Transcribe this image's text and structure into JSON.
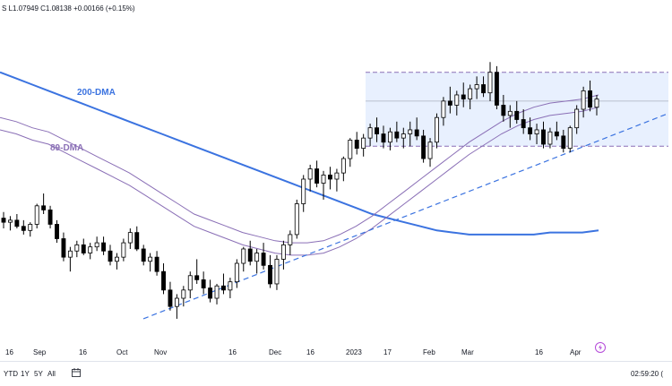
{
  "header": {
    "ohlc_text": "S  L1.07949  C1.08138  +0.00166 (+0.15%)"
  },
  "range_buttons": [
    "YTD",
    "1Y",
    "5Y",
    "All"
  ],
  "clock": "02:59:20 (",
  "colors": {
    "up": "#ffffff",
    "down": "#000000",
    "ma200": "#3b73e0",
    "ma89": "#8a6fb6",
    "trendline": "#3b73e0",
    "range_fill": "#e8f0fe",
    "range_border": "#8a6fb6"
  },
  "chart_data": {
    "type": "candlestick",
    "x_labels": [
      "16",
      "Sep",
      "16",
      "Oct",
      "Nov",
      "16",
      "Dec",
      "16",
      "2023",
      "17",
      "Feb",
      "Mar",
      "16",
      "Apr"
    ],
    "annotations": [
      "200-DMA",
      "89-DMA"
    ],
    "y_range": [
      0.955,
      1.105
    ],
    "series_ma200": [
      1.082,
      1.079,
      1.076,
      1.073,
      1.07,
      1.067,
      1.064,
      1.061,
      1.058,
      1.055,
      1.052,
      1.049,
      1.046,
      1.043,
      1.04,
      1.037,
      1.034,
      1.031,
      1.028,
      1.025,
      1.022,
      1.019,
      1.016,
      1.013,
      1.011,
      1.009,
      1.007,
      1.005,
      1.004,
      1.003,
      1.003,
      1.003,
      1.003,
      1.003,
      1.004,
      1.004,
      1.004,
      1.005
    ],
    "series_ma89": [
      1.06,
      1.058,
      1.055,
      1.053,
      1.049,
      1.045,
      1.041,
      1.037,
      1.033,
      1.028,
      1.023,
      1.018,
      1.013,
      1.01,
      1.007,
      1.004,
      1.002,
      1.0,
      0.999,
      0.999,
      1.0,
      1.003,
      1.007,
      1.012,
      1.018,
      1.024,
      1.03,
      1.036,
      1.042,
      1.048,
      1.053,
      1.058,
      1.062,
      1.065,
      1.067,
      1.068,
      1.069,
      1.071
    ],
    "candles": [
      [
        1.011,
        1.014,
        1.006,
        1.009
      ],
      [
        1.009,
        1.012,
        1.005,
        1.01
      ],
      [
        1.01,
        1.013,
        1.006,
        1.007
      ],
      [
        1.007,
        1.01,
        1.003,
        1.005
      ],
      [
        1.005,
        1.009,
        1.002,
        1.008
      ],
      [
        1.008,
        1.018,
        1.006,
        1.017
      ],
      [
        1.017,
        1.023,
        1.013,
        1.015
      ],
      [
        1.015,
        1.017,
        1.006,
        1.008
      ],
      [
        1.008,
        1.01,
        0.999,
        1.001
      ],
      [
        1.001,
        1.004,
        0.99,
        0.992
      ],
      [
        0.992,
        0.997,
        0.985,
        0.995
      ],
      [
        0.995,
        1.0,
        0.992,
        0.998
      ],
      [
        0.998,
        1.001,
        0.993,
        0.994
      ],
      [
        0.994,
        0.999,
        0.991,
        0.997
      ],
      [
        0.997,
        1.002,
        0.995,
        0.999
      ],
      [
        0.999,
        1.002,
        0.993,
        0.995
      ],
      [
        0.995,
        0.998,
        0.988,
        0.99
      ],
      [
        0.99,
        0.994,
        0.986,
        0.992
      ],
      [
        0.992,
        1.001,
        0.99,
        0.999
      ],
      [
        0.999,
        1.006,
        0.996,
        1.004
      ],
      [
        1.004,
        1.007,
        0.995,
        0.996
      ],
      [
        0.996,
        0.998,
        0.988,
        0.99
      ],
      [
        0.99,
        0.994,
        0.985,
        0.992
      ],
      [
        0.992,
        0.995,
        0.983,
        0.985
      ],
      [
        0.985,
        0.989,
        0.974,
        0.976
      ],
      [
        0.976,
        0.98,
        0.966,
        0.968
      ],
      [
        0.968,
        0.974,
        0.962,
        0.972
      ],
      [
        0.972,
        0.978,
        0.968,
        0.976
      ],
      [
        0.976,
        0.985,
        0.972,
        0.983
      ],
      [
        0.983,
        0.991,
        0.979,
        0.981
      ],
      [
        0.981,
        0.985,
        0.974,
        0.977
      ],
      [
        0.977,
        0.981,
        0.97,
        0.972
      ],
      [
        0.972,
        0.979,
        0.969,
        0.978
      ],
      [
        0.978,
        0.984,
        0.974,
        0.976
      ],
      [
        0.976,
        0.982,
        0.972,
        0.98
      ],
      [
        0.98,
        0.991,
        0.977,
        0.989
      ],
      [
        0.989,
        0.997,
        0.985,
        0.996
      ],
      [
        0.996,
        1.0,
        0.988,
        0.99
      ],
      [
        0.99,
        0.996,
        0.984,
        0.994
      ],
      [
        0.994,
        0.999,
        0.986,
        0.988
      ],
      [
        0.988,
        0.993,
        0.977,
        0.979
      ],
      [
        0.979,
        0.993,
        0.976,
        0.991
      ],
      [
        0.991,
        1.0,
        0.986,
        0.998
      ],
      [
        0.998,
        1.005,
        0.993,
        1.003
      ],
      [
        1.003,
        1.02,
        1.001,
        1.018
      ],
      [
        1.018,
        1.032,
        1.014,
        1.03
      ],
      [
        1.03,
        1.037,
        1.024,
        1.035
      ],
      [
        1.035,
        1.039,
        1.026,
        1.028
      ],
      [
        1.028,
        1.034,
        1.02,
        1.032
      ],
      [
        1.032,
        1.036,
        1.025,
        1.03
      ],
      [
        1.03,
        1.035,
        1.024,
        1.033
      ],
      [
        1.033,
        1.041,
        1.029,
        1.04
      ],
      [
        1.04,
        1.05,
        1.036,
        1.049
      ],
      [
        1.049,
        1.053,
        1.042,
        1.045
      ],
      [
        1.045,
        1.052,
        1.041,
        1.05
      ],
      [
        1.05,
        1.057,
        1.046,
        1.055
      ],
      [
        1.055,
        1.06,
        1.048,
        1.052
      ],
      [
        1.052,
        1.056,
        1.045,
        1.048
      ],
      [
        1.048,
        1.055,
        1.044,
        1.053
      ],
      [
        1.053,
        1.058,
        1.048,
        1.05
      ],
      [
        1.05,
        1.055,
        1.045,
        1.052
      ],
      [
        1.052,
        1.058,
        1.046,
        1.054
      ],
      [
        1.054,
        1.06,
        1.049,
        1.051
      ],
      [
        1.051,
        1.054,
        1.038,
        1.04
      ],
      [
        1.04,
        1.05,
        1.036,
        1.048
      ],
      [
        1.048,
        1.062,
        1.045,
        1.06
      ],
      [
        1.06,
        1.07,
        1.056,
        1.068
      ],
      [
        1.068,
        1.075,
        1.062,
        1.066
      ],
      [
        1.066,
        1.073,
        1.061,
        1.071
      ],
      [
        1.071,
        1.077,
        1.065,
        1.069
      ],
      [
        1.069,
        1.076,
        1.064,
        1.074
      ],
      [
        1.074,
        1.08,
        1.069,
        1.076
      ],
      [
        1.076,
        1.08,
        1.07,
        1.072
      ],
      [
        1.072,
        1.087,
        1.068,
        1.082
      ],
      [
        1.082,
        1.085,
        1.064,
        1.066
      ],
      [
        1.066,
        1.071,
        1.058,
        1.061
      ],
      [
        1.061,
        1.066,
        1.055,
        1.063
      ],
      [
        1.063,
        1.068,
        1.057,
        1.059
      ],
      [
        1.059,
        1.064,
        1.052,
        1.055
      ],
      [
        1.055,
        1.06,
        1.049,
        1.052
      ],
      [
        1.052,
        1.057,
        1.047,
        1.054
      ],
      [
        1.054,
        1.058,
        1.045,
        1.047
      ],
      [
        1.047,
        1.055,
        1.045,
        1.053
      ],
      [
        1.053,
        1.058,
        1.049,
        1.051
      ],
      [
        1.051,
        1.054,
        1.043,
        1.045
      ],
      [
        1.045,
        1.056,
        1.043,
        1.055
      ],
      [
        1.055,
        1.066,
        1.052,
        1.064
      ],
      [
        1.064,
        1.075,
        1.06,
        1.073
      ],
      [
        1.073,
        1.078,
        1.063,
        1.065
      ],
      [
        1.065,
        1.071,
        1.061,
        1.069
      ]
    ],
    "trendline_label": "",
    "range_box": {
      "top": 1.082,
      "mid": 1.068,
      "bottom": 1.046
    }
  }
}
